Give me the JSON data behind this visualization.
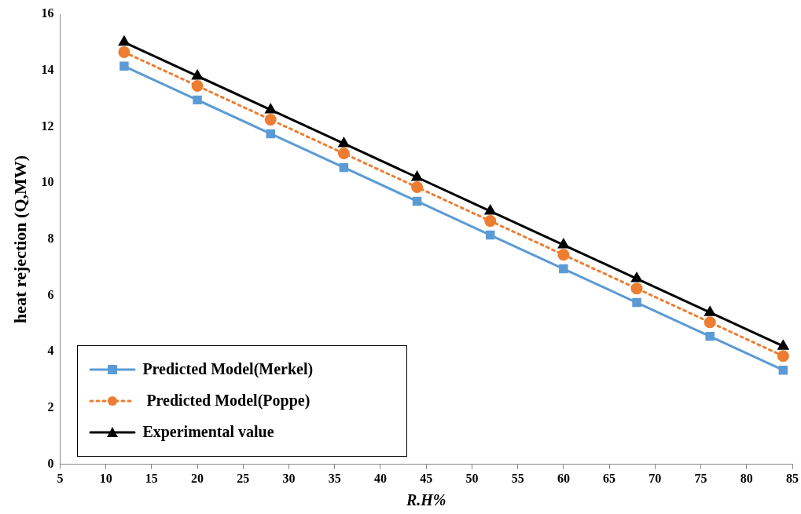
{
  "chart_data": {
    "type": "line",
    "xlabel": "R.H%",
    "ylabel": "heat rejection (Q,MW)",
    "x": [
      12,
      20,
      28,
      36,
      44,
      52,
      60,
      68,
      76,
      84
    ],
    "series": [
      {
        "name": "Predicted Model(Merkel)",
        "color": "#5b9bd5",
        "marker": "square",
        "line_style": "solid",
        "values": [
          14.15,
          12.95,
          11.75,
          10.55,
          9.35,
          8.15,
          6.95,
          5.75,
          4.55,
          3.35
        ]
      },
      {
        "name": " Predicted Model(Poppe)",
        "color": "#ed7d31",
        "marker": "circle",
        "line_style": "dotted",
        "values": [
          14.65,
          13.45,
          12.25,
          11.05,
          9.85,
          8.65,
          7.45,
          6.25,
          5.05,
          3.85
        ]
      },
      {
        "name": "Experimental value",
        "color": "#000000",
        "marker": "triangle",
        "line_style": "solid",
        "values": [
          15,
          13.8,
          12.6,
          11.4,
          10.2,
          9,
          7.8,
          6.6,
          5.4,
          4.2
        ]
      }
    ],
    "xlim": [
      5,
      85
    ],
    "xticks": [
      5,
      10,
      15,
      20,
      25,
      30,
      35,
      40,
      45,
      50,
      55,
      60,
      65,
      70,
      75,
      80,
      85
    ],
    "ylim": [
      0,
      16
    ],
    "yticks": [
      0,
      2,
      4,
      6,
      8,
      10,
      12,
      14,
      16
    ],
    "grid": false,
    "legend": "bottom left"
  }
}
